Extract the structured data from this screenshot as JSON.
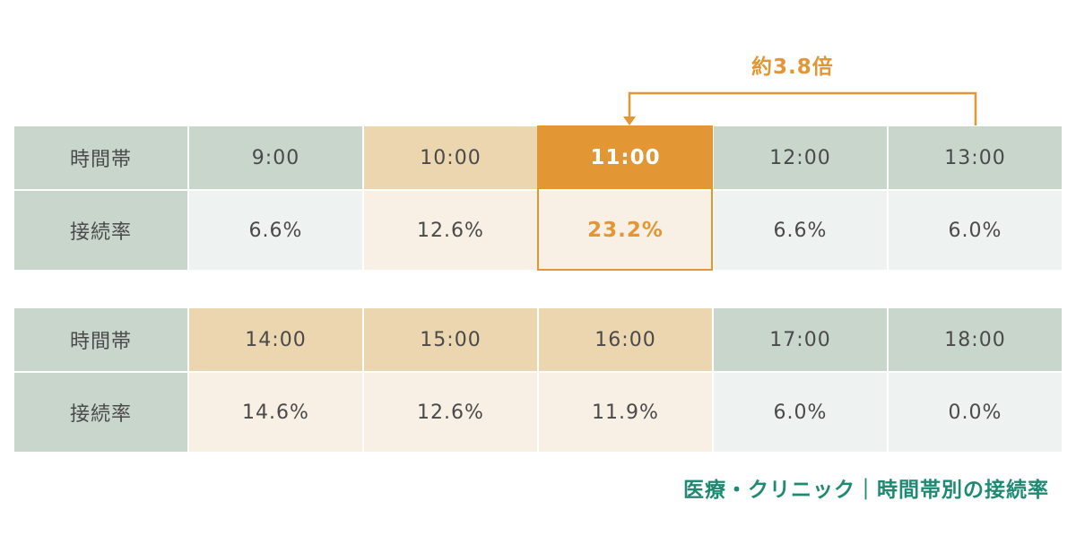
{
  "chart_data": {
    "type": "table",
    "row_labels": {
      "time": "時間帯",
      "rate": "接続率"
    },
    "rows": [
      {
        "times": [
          "9:00",
          "10:00",
          "11:00",
          "12:00",
          "13:00"
        ],
        "rates": [
          "6.6%",
          "12.6%",
          "23.2%",
          "6.6%",
          "6.0%"
        ],
        "values": [
          6.6,
          12.6,
          23.2,
          6.6,
          6.0
        ]
      },
      {
        "times": [
          "14:00",
          "15:00",
          "16:00",
          "17:00",
          "18:00"
        ],
        "rates": [
          "14.6%",
          "12.6%",
          "11.9%",
          "6.0%",
          "0.0%"
        ],
        "values": [
          14.6,
          12.6,
          11.9,
          6.0,
          0.0
        ]
      }
    ],
    "highlight": {
      "time": "11:00",
      "value": 23.2
    },
    "annotation": "約3.8倍",
    "caption": "医療・クリニック｜時間帯別の接続率"
  },
  "colors": {
    "green_header": "#c9d6cc",
    "beige_header": "#ebd6b0",
    "gray_value": "#eef2f1",
    "cream_value": "#f8efe5",
    "accent_orange": "#e29634",
    "caption_green": "#1e8a73"
  }
}
